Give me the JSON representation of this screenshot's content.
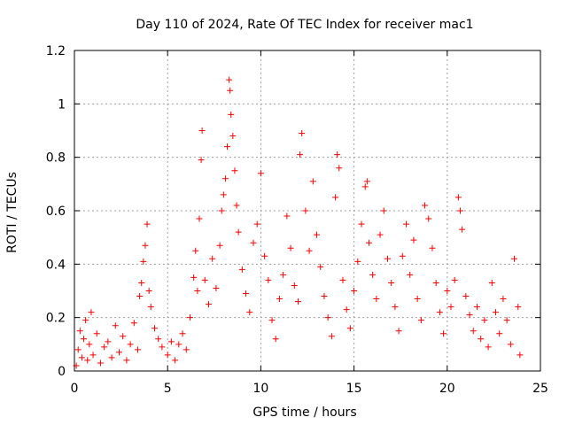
{
  "chart_data": {
    "type": "scatter",
    "title": "Day 110 of 2024, Rate Of TEC Index for receiver mac1",
    "xlabel": "GPS time / hours",
    "ylabel": "ROTI / TECUs",
    "xlim": [
      0,
      25
    ],
    "ylim": [
      0,
      1.2
    ],
    "xticks": [
      0,
      5,
      10,
      15,
      20,
      25
    ],
    "yticks": [
      0,
      0.2,
      0.4,
      0.6,
      0.8,
      1,
      1.2
    ],
    "xtick_labels": [
      "0",
      "5",
      "10",
      "15",
      "20",
      "25"
    ],
    "ytick_labels": [
      "0",
      "0.2",
      "0.4",
      "0.6",
      "0.8",
      "1",
      "1.2"
    ],
    "grid": true,
    "marker": "+",
    "series_color": "#ff0000",
    "series": [
      {
        "name": "ROTI",
        "points": [
          [
            0.1,
            0.02
          ],
          [
            0.2,
            0.08
          ],
          [
            0.3,
            0.15
          ],
          [
            0.4,
            0.05
          ],
          [
            0.5,
            0.12
          ],
          [
            0.6,
            0.19
          ],
          [
            0.7,
            0.04
          ],
          [
            0.8,
            0.1
          ],
          [
            0.9,
            0.22
          ],
          [
            1.0,
            0.06
          ],
          [
            1.2,
            0.14
          ],
          [
            1.4,
            0.03
          ],
          [
            1.6,
            0.09
          ],
          [
            1.8,
            0.11
          ],
          [
            2.0,
            0.05
          ],
          [
            2.2,
            0.17
          ],
          [
            2.4,
            0.07
          ],
          [
            2.6,
            0.13
          ],
          [
            2.8,
            0.04
          ],
          [
            3.0,
            0.1
          ],
          [
            3.2,
            0.18
          ],
          [
            3.4,
            0.08
          ],
          [
            3.5,
            0.28
          ],
          [
            3.6,
            0.33
          ],
          [
            3.7,
            0.41
          ],
          [
            3.8,
            0.47
          ],
          [
            3.9,
            0.55
          ],
          [
            4.0,
            0.3
          ],
          [
            4.1,
            0.24
          ],
          [
            4.3,
            0.16
          ],
          [
            4.5,
            0.12
          ],
          [
            4.7,
            0.09
          ],
          [
            5.0,
            0.06
          ],
          [
            5.2,
            0.11
          ],
          [
            5.4,
            0.04
          ],
          [
            5.6,
            0.1
          ],
          [
            5.8,
            0.14
          ],
          [
            6.0,
            0.08
          ],
          [
            6.2,
            0.2
          ],
          [
            6.4,
            0.35
          ],
          [
            6.5,
            0.45
          ],
          [
            6.6,
            0.3
          ],
          [
            6.7,
            0.57
          ],
          [
            6.8,
            0.79
          ],
          [
            6.85,
            0.9
          ],
          [
            7.0,
            0.34
          ],
          [
            7.2,
            0.25
          ],
          [
            7.4,
            0.42
          ],
          [
            7.6,
            0.31
          ],
          [
            7.8,
            0.47
          ],
          [
            7.9,
            0.6
          ],
          [
            8.0,
            0.66
          ],
          [
            8.1,
            0.72
          ],
          [
            8.2,
            0.84
          ],
          [
            8.3,
            1.09
          ],
          [
            8.35,
            1.05
          ],
          [
            8.4,
            0.96
          ],
          [
            8.5,
            0.88
          ],
          [
            8.6,
            0.75
          ],
          [
            8.7,
            0.62
          ],
          [
            8.8,
            0.52
          ],
          [
            9.0,
            0.38
          ],
          [
            9.2,
            0.29
          ],
          [
            9.4,
            0.22
          ],
          [
            9.6,
            0.48
          ],
          [
            9.8,
            0.55
          ],
          [
            10.0,
            0.74
          ],
          [
            10.2,
            0.43
          ],
          [
            10.4,
            0.34
          ],
          [
            10.6,
            0.19
          ],
          [
            10.8,
            0.12
          ],
          [
            11.0,
            0.27
          ],
          [
            11.2,
            0.36
          ],
          [
            11.4,
            0.58
          ],
          [
            11.6,
            0.46
          ],
          [
            11.8,
            0.32
          ],
          [
            12.0,
            0.26
          ],
          [
            12.1,
            0.81
          ],
          [
            12.2,
            0.89
          ],
          [
            12.4,
            0.6
          ],
          [
            12.6,
            0.45
          ],
          [
            12.8,
            0.71
          ],
          [
            13.0,
            0.51
          ],
          [
            13.2,
            0.39
          ],
          [
            13.4,
            0.28
          ],
          [
            13.6,
            0.2
          ],
          [
            13.8,
            0.13
          ],
          [
            14.0,
            0.65
          ],
          [
            14.1,
            0.81
          ],
          [
            14.2,
            0.76
          ],
          [
            14.4,
            0.34
          ],
          [
            14.6,
            0.23
          ],
          [
            14.8,
            0.16
          ],
          [
            15.0,
            0.3
          ],
          [
            15.2,
            0.41
          ],
          [
            15.4,
            0.55
          ],
          [
            15.6,
            0.69
          ],
          [
            15.7,
            0.71
          ],
          [
            15.8,
            0.48
          ],
          [
            16.0,
            0.36
          ],
          [
            16.2,
            0.27
          ],
          [
            16.4,
            0.51
          ],
          [
            16.6,
            0.6
          ],
          [
            16.8,
            0.42
          ],
          [
            17.0,
            0.33
          ],
          [
            17.2,
            0.24
          ],
          [
            17.4,
            0.15
          ],
          [
            17.6,
            0.43
          ],
          [
            17.8,
            0.55
          ],
          [
            18.0,
            0.36
          ],
          [
            18.2,
            0.49
          ],
          [
            18.4,
            0.27
          ],
          [
            18.6,
            0.19
          ],
          [
            18.8,
            0.62
          ],
          [
            19.0,
            0.57
          ],
          [
            19.2,
            0.46
          ],
          [
            19.4,
            0.33
          ],
          [
            19.6,
            0.22
          ],
          [
            19.8,
            0.14
          ],
          [
            20.0,
            0.3
          ],
          [
            20.2,
            0.24
          ],
          [
            20.4,
            0.34
          ],
          [
            20.6,
            0.65
          ],
          [
            20.7,
            0.6
          ],
          [
            20.8,
            0.53
          ],
          [
            21.0,
            0.28
          ],
          [
            21.2,
            0.21
          ],
          [
            21.4,
            0.15
          ],
          [
            21.6,
            0.24
          ],
          [
            21.8,
            0.12
          ],
          [
            22.0,
            0.19
          ],
          [
            22.2,
            0.09
          ],
          [
            22.4,
            0.33
          ],
          [
            22.6,
            0.22
          ],
          [
            22.8,
            0.14
          ],
          [
            23.0,
            0.27
          ],
          [
            23.2,
            0.19
          ],
          [
            23.4,
            0.1
          ],
          [
            23.6,
            0.42
          ],
          [
            23.8,
            0.24
          ],
          [
            23.9,
            0.06
          ]
        ]
      }
    ]
  }
}
